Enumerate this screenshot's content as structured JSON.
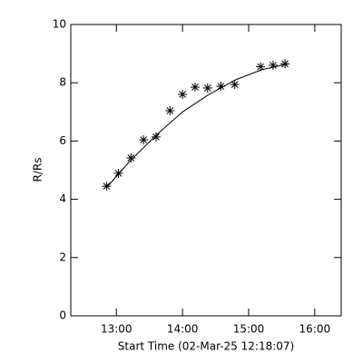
{
  "chart_data": {
    "type": "scatter",
    "xlabel": "Start Time (02-Mar-25 12:18:07)",
    "ylabel": "R/Rs",
    "xlim": [
      12.31,
      16.4
    ],
    "ylim": [
      0,
      10
    ],
    "xticks": [
      {
        "value": 13,
        "label": "13:00"
      },
      {
        "value": 14,
        "label": "14:00"
      },
      {
        "value": 15,
        "label": "15:00"
      },
      {
        "value": 16,
        "label": "16:00"
      }
    ],
    "yticks": [
      0,
      2,
      4,
      6,
      8,
      10
    ],
    "series": [
      {
        "marker": "asterisk",
        "color": "#000000",
        "x": [
          12.85,
          13.03,
          13.22,
          13.41,
          13.6,
          13.81,
          14.0,
          14.19,
          14.38,
          14.58,
          14.79,
          15.18,
          15.37,
          15.55
        ],
        "values": [
          4.45,
          4.89,
          5.42,
          6.04,
          6.14,
          7.04,
          7.6,
          7.85,
          7.82,
          7.88,
          7.94,
          8.55,
          8.6,
          8.65
        ]
      },
      {
        "marker": "line",
        "color": "#000000",
        "x": [
          12.85,
          13.2,
          13.6,
          14.0,
          14.4,
          14.8,
          15.2,
          15.6
        ],
        "values": [
          4.4,
          5.3,
          6.2,
          7.0,
          7.6,
          8.1,
          8.45,
          8.65
        ]
      }
    ]
  }
}
